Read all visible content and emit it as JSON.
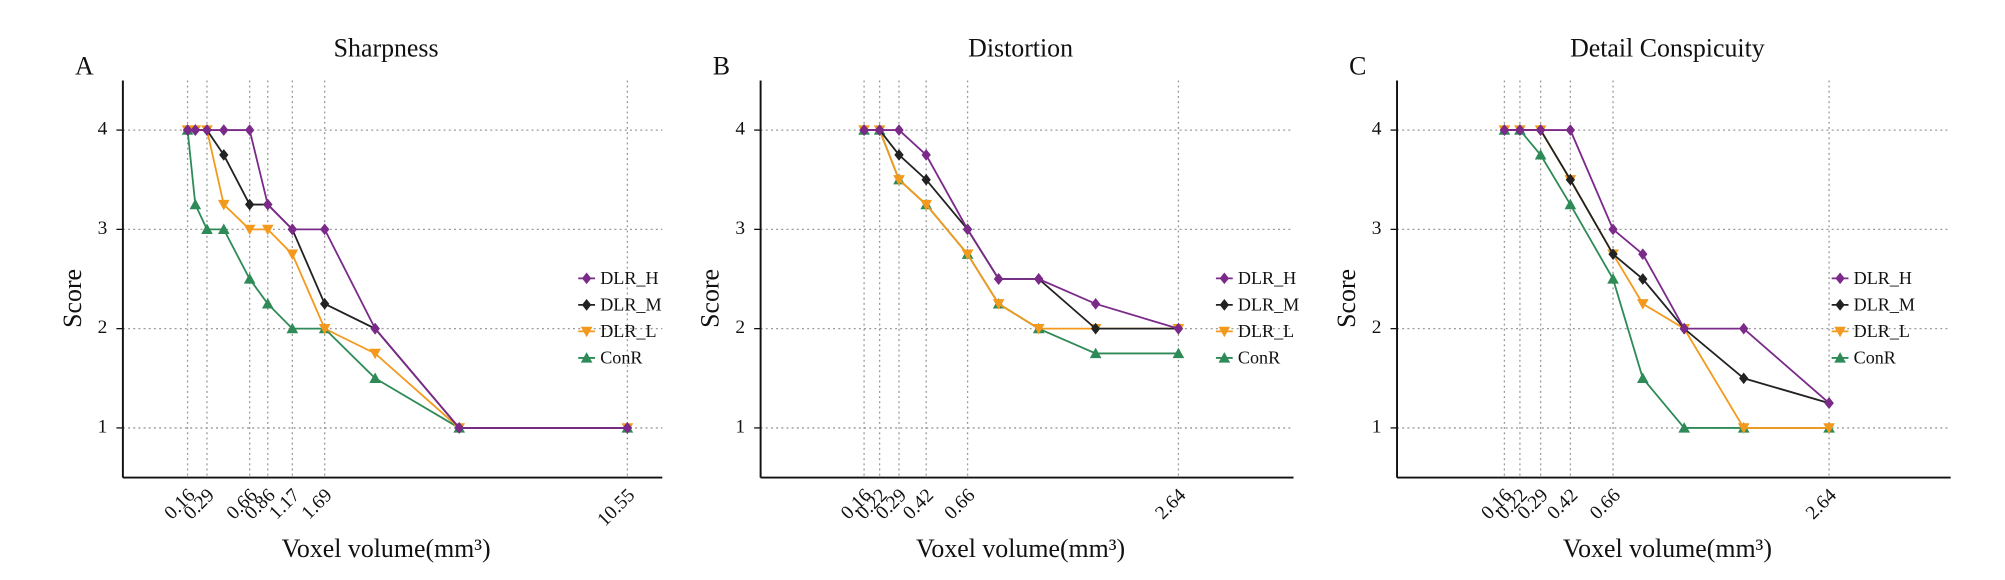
{
  "chart_data": [
    {
      "type": "line",
      "panel_label": "A",
      "title": "Sharpness",
      "xlabel": "Voxel volume(mm³)",
      "ylabel": "Score",
      "categories": [
        "0.16",
        null,
        "0.29",
        null,
        "0.66",
        "0.86",
        "1.17",
        "1.69",
        null,
        null,
        "10.55"
      ],
      "ylim": [
        0.5,
        4.5
      ],
      "yticks": [
        1,
        2,
        3,
        4
      ],
      "grid": true,
      "legend": "right",
      "series": [
        {
          "name": "DLR_H",
          "color": "#7b2a8a",
          "marker": "diamond",
          "values": [
            4,
            4,
            4,
            4,
            4,
            3.25,
            3,
            3,
            2,
            1,
            1
          ]
        },
        {
          "name": "DLR_M",
          "color": "#222222",
          "marker": "diamond",
          "values": [
            4,
            4,
            4,
            3.75,
            3.25,
            3.25,
            3,
            2.25,
            2,
            1,
            1
          ]
        },
        {
          "name": "DLR_L",
          "color": "#f39a1e",
          "marker": "triangle-down",
          "values": [
            4,
            4,
            4,
            3.25,
            3,
            3,
            2.75,
            2,
            1.75,
            1,
            1
          ]
        },
        {
          "name": "ConR",
          "color": "#2e8b57",
          "marker": "triangle-up",
          "values": [
            4,
            3.25,
            3,
            3,
            2.5,
            2.25,
            2,
            2,
            1.5,
            1,
            1
          ]
        }
      ]
    },
    {
      "type": "line",
      "panel_label": "B",
      "title": "Distortion",
      "xlabel": "Voxel volume(mm³)",
      "ylabel": "Score",
      "categories": [
        "0.16",
        "0.22",
        "0.29",
        "0.42",
        "0.66",
        null,
        null,
        null,
        "2.64"
      ],
      "ylim": [
        0.5,
        4.5
      ],
      "yticks": [
        1,
        2,
        3,
        4
      ],
      "grid": true,
      "legend": "right",
      "series": [
        {
          "name": "DLR_H",
          "color": "#7b2a8a",
          "marker": "diamond",
          "values": [
            4,
            4,
            4,
            3.75,
            3,
            2.5,
            2.5,
            2.25,
            2
          ]
        },
        {
          "name": "DLR_M",
          "color": "#222222",
          "marker": "diamond",
          "values": [
            4,
            4,
            3.75,
            3.5,
            3,
            2.5,
            2.5,
            2,
            2
          ]
        },
        {
          "name": "DLR_L",
          "color": "#f39a1e",
          "marker": "triangle-down",
          "values": [
            4,
            4,
            3.5,
            3.25,
            2.75,
            2.25,
            2,
            2,
            2
          ]
        },
        {
          "name": "ConR",
          "color": "#2e8b57",
          "marker": "triangle-up",
          "values": [
            4,
            4,
            3.5,
            3.25,
            2.75,
            2.25,
            2,
            1.75,
            1.75
          ]
        }
      ]
    },
    {
      "type": "line",
      "panel_label": "C",
      "title": "Detail Conspicuity",
      "xlabel": "Voxel volume(mm³)",
      "ylabel": "Score",
      "categories": [
        "0.16",
        "0.22",
        "0.29",
        "0.42",
        "0.66",
        null,
        null,
        null,
        "2.64"
      ],
      "ylim": [
        0.5,
        4.5
      ],
      "yticks": [
        1,
        2,
        3,
        4
      ],
      "grid": true,
      "legend": "right",
      "series": [
        {
          "name": "DLR_H",
          "color": "#7b2a8a",
          "marker": "diamond",
          "values": [
            4,
            4,
            4,
            4,
            3,
            2.75,
            2,
            2,
            1.25
          ]
        },
        {
          "name": "DLR_M",
          "color": "#222222",
          "marker": "diamond",
          "values": [
            4,
            4,
            4,
            3.5,
            2.75,
            2.5,
            2,
            1.5,
            1.25
          ]
        },
        {
          "name": "DLR_L",
          "color": "#f39a1e",
          "marker": "triangle-down",
          "values": [
            4,
            4,
            4,
            3.5,
            2.75,
            2.25,
            2,
            1,
            1
          ]
        },
        {
          "name": "ConR",
          "color": "#2e8b57",
          "marker": "triangle-up",
          "values": [
            4,
            4,
            3.75,
            3.25,
            2.5,
            1.5,
            1,
            1,
            1
          ]
        }
      ]
    }
  ]
}
